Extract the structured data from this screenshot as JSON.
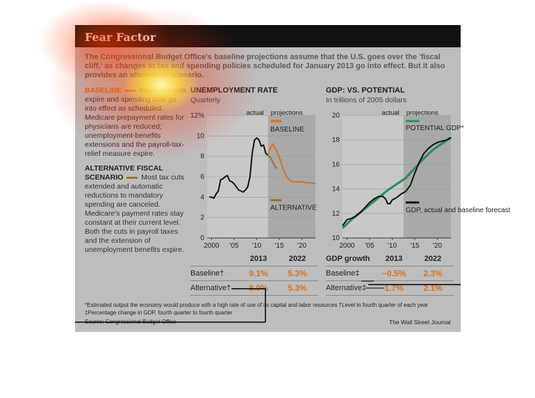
{
  "header": {
    "title": "Fear Factor"
  },
  "intro": "The Congressional Budget Office's baseline projections assume that the U.S. goes over the 'fiscal cliff,' as changes to tax and spending policies scheduled for January 2013 go into effect. But it also provides an alternative scenario.",
  "side": {
    "baseline_head": "BASELINE",
    "baseline_text": "taken; tax cuts expire and spending cuts go into effect as scheduled. Medicare prepayment rates for physicians are reduced; unemployment-benefits extensions and the payroll-tax-relief measure expire.",
    "alt_head": "ALTERNATIVE FISCAL SCENARIO",
    "alt_text": "Most tax cuts extended and automatic reductions to mandatory spending are canceled. Medicare's payment rates stay constant at their current level. Both the cuts in payroll taxes and the extension of unemployment benefits expire."
  },
  "colors": {
    "baseline": "#d6731e",
    "alternative": "#8a7a2c",
    "potential": "#2e8b57",
    "actual": "#111111",
    "shade": "#a9a9a9"
  },
  "chart_data": [
    {
      "type": "line",
      "title": "UNEMPLOYMENT RATE",
      "subtitle": "Quarterly",
      "xlim": [
        1999,
        2023
      ],
      "ylim": [
        0,
        12
      ],
      "yticks": [
        "0",
        "2",
        "4",
        "6",
        "8",
        "10",
        "12%"
      ],
      "xticks": [
        "2000",
        "'05",
        "'10",
        "'15",
        "'20"
      ],
      "labels": {
        "actual": "actual",
        "projections": "projections",
        "baseline": "BASELINE",
        "alternative": "ALTERNATIVE"
      },
      "series": [
        {
          "name": "actual",
          "x": [
            1999.5,
            2000,
            2000.5,
            2001,
            2001.5,
            2002,
            2002.5,
            2003,
            2003.5,
            2004,
            2004.5,
            2005,
            2005.5,
            2006,
            2006.5,
            2007,
            2007.5,
            2008,
            2008.5,
            2009,
            2009.5,
            2010,
            2010.5,
            2011,
            2011.5,
            2012,
            2012.5
          ],
          "y": [
            4.0,
            4.0,
            3.9,
            4.3,
            4.6,
            5.7,
            5.8,
            6.0,
            6.1,
            5.6,
            5.5,
            5.3,
            5.0,
            4.7,
            4.6,
            4.5,
            4.7,
            5.0,
            6.0,
            8.3,
            9.6,
            9.8,
            9.6,
            9.0,
            9.1,
            8.3,
            8.1
          ]
        },
        {
          "name": "BASELINE",
          "x": [
            2012.5,
            2013,
            2013.5,
            2014,
            2014.5,
            2015,
            2015.5,
            2016,
            2016.5,
            2017,
            2017.5,
            2018,
            2019,
            2020,
            2021,
            2022,
            2023
          ],
          "y": [
            8.1,
            8.8,
            9.2,
            8.9,
            8.4,
            7.9,
            7.2,
            6.6,
            6.1,
            5.8,
            5.6,
            5.5,
            5.5,
            5.5,
            5.4,
            5.4,
            5.3
          ]
        },
        {
          "name": "ALTERNATIVE",
          "x": [
            2012.5,
            2013,
            2013.5,
            2014,
            2014.5
          ],
          "y": [
            8.1,
            7.9,
            7.5,
            7.0,
            6.8
          ]
        }
      ],
      "projection_start": 2012.5
    },
    {
      "type": "line",
      "title": "GDP: VS. POTENTIAL",
      "subtitle": "In trillions of 2005 dollars",
      "xlim": [
        1999,
        2023
      ],
      "ylim": [
        10,
        20
      ],
      "yticks": [
        "10",
        "12",
        "14",
        "16",
        "18",
        "20"
      ],
      "xticks": [
        "2000",
        "'05",
        "'10",
        "'15",
        "'20"
      ],
      "labels": {
        "actual": "actual",
        "projections": "projections",
        "potential": "POTENTIAL GDP*",
        "gdp": "GDP, actual and baseline forecast"
      },
      "series": [
        {
          "name": "POTENTIAL GDP*",
          "x": [
            1999,
            2001,
            2003,
            2005,
            2007,
            2009,
            2011,
            2013,
            2015,
            2017,
            2019,
            2021,
            2023
          ],
          "y": [
            10.8,
            11.5,
            12.1,
            12.7,
            13.3,
            13.9,
            14.4,
            14.9,
            15.7,
            16.5,
            17.2,
            17.7,
            18.2
          ]
        },
        {
          "name": "GDP, actual and baseline forecast",
          "x": [
            1999,
            2000,
            2001,
            2002,
            2003,
            2004,
            2005,
            2006,
            2007,
            2007.9,
            2008.5,
            2009,
            2009.5,
            2010,
            2011,
            2012,
            2013,
            2014,
            2015,
            2016,
            2017,
            2018,
            2019,
            2020,
            2021,
            2022,
            2023
          ],
          "y": [
            11.0,
            11.5,
            11.6,
            11.8,
            12.1,
            12.5,
            12.9,
            13.2,
            13.4,
            13.4,
            13.2,
            12.8,
            12.8,
            13.1,
            13.3,
            13.6,
            13.8,
            14.3,
            15.3,
            16.2,
            16.9,
            17.3,
            17.6,
            17.8,
            17.9,
            18.0,
            18.2
          ]
        }
      ],
      "projection_start": 2012.5
    }
  ],
  "unemp_table": {
    "cols": [
      "2013",
      "2022"
    ],
    "rows": [
      {
        "label": "Baseline†",
        "v1": "9.1%",
        "v2": "5.3%"
      },
      {
        "label": "Alternative†",
        "v1": "8.0%",
        "v2": "5.3%"
      }
    ]
  },
  "gdp_table": {
    "head": "GDP growth",
    "cols": [
      "2013",
      "2022"
    ],
    "rows": [
      {
        "label": "Baseline‡",
        "v1": "−0.5%",
        "v2": "2.3%"
      },
      {
        "label": "Alternative‡",
        "v1": "1.7%",
        "v2": "2.1%"
      }
    ]
  },
  "footnotes": {
    "f1": "*Estimated output the economy would produce with a high rate of use of its capital and labor resources   †Level in fourth quarter of each year",
    "f2": "‡Percentage change in GDP, fourth quarter to fourth quarter",
    "source": "Source: Congressional Budget Office",
    "credit": "The Wall Street Journal"
  }
}
